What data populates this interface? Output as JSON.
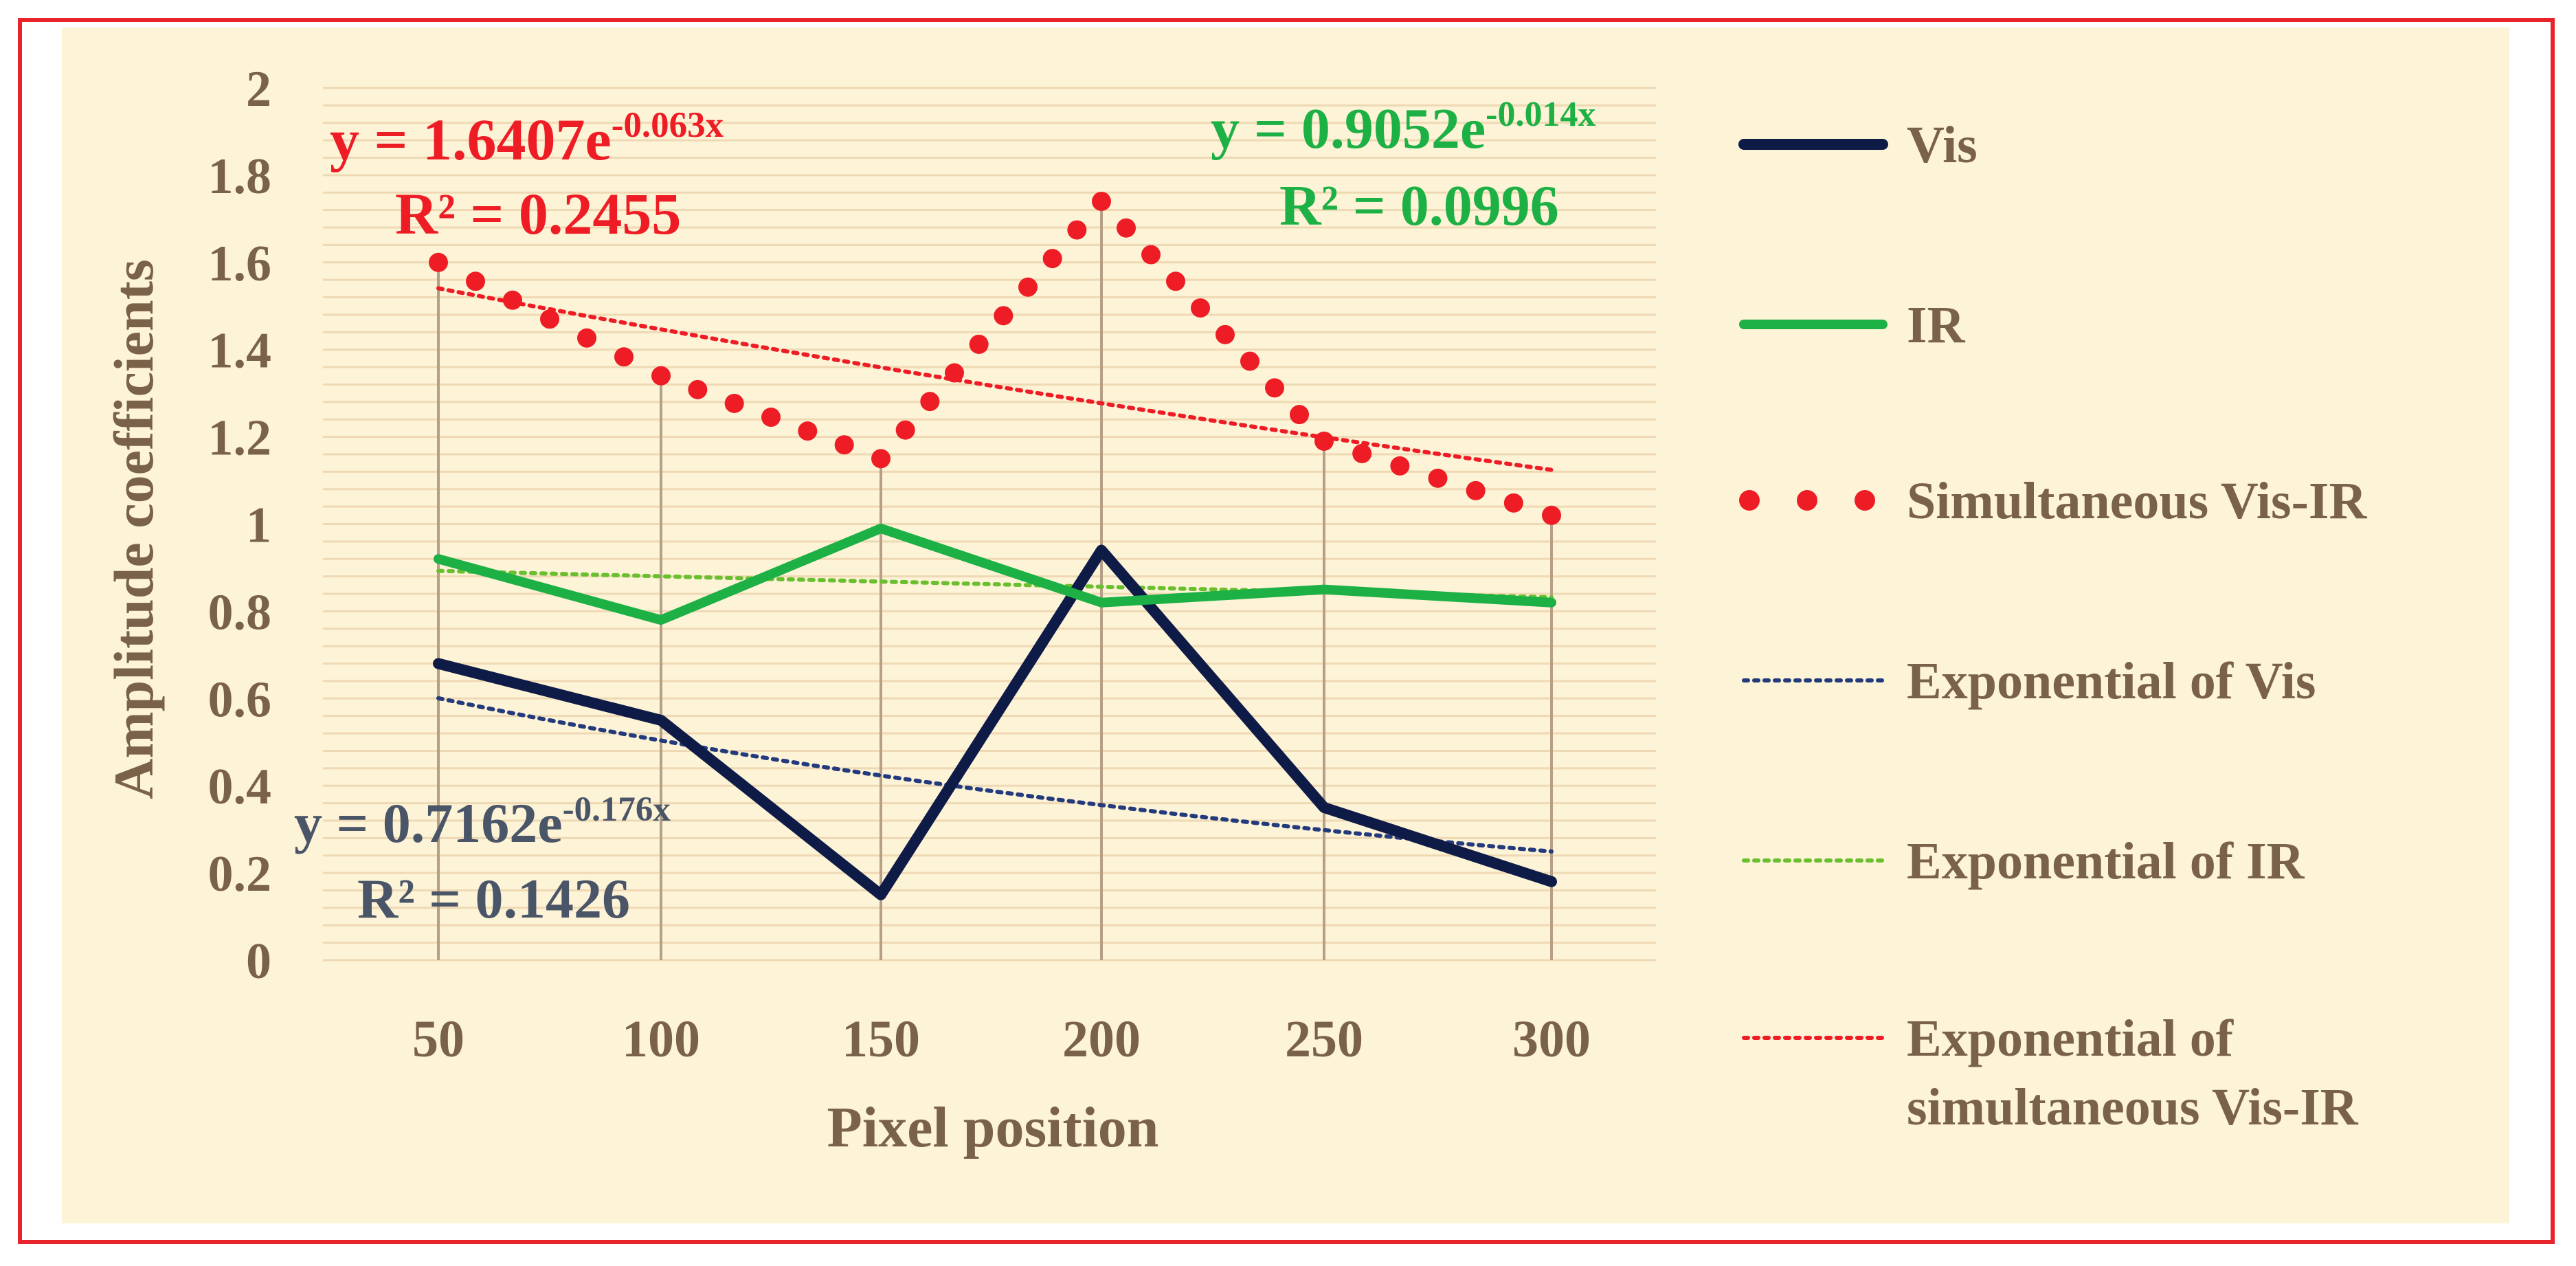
{
  "chart_data": {
    "type": "line",
    "xlabel": "Pixel position",
    "ylabel": "Amplitude coefficients",
    "x": [
      50,
      100,
      150,
      200,
      250,
      300
    ],
    "x_tick_labels": [
      "50",
      "100",
      "150",
      "200",
      "250",
      "300"
    ],
    "ylim": [
      0,
      2
    ],
    "y_ticks": [
      0,
      0.2,
      0.4,
      0.6,
      0.8,
      1,
      1.2,
      1.4,
      1.6,
      1.8,
      2
    ],
    "y_tick_labels": [
      "0",
      "0.2",
      "0.4",
      "0.6",
      "0.8",
      "1",
      "1.2",
      "1.4",
      "1.6",
      "1.8",
      "2"
    ],
    "grid": "horizontal",
    "legend_position": "right",
    "colors": {
      "frame": "#e8232b",
      "plot_background": "#fdf3d7",
      "gridline": "#efd9b4",
      "axis_text": "#7a6248",
      "vertical_guides": "#b59f86",
      "vis": "#0e1b47",
      "ir": "#1db045",
      "simultaneous": "#ee1c24",
      "exp_vis": "#233a7c",
      "exp_ir": "#6abf2e",
      "exp_simultaneous": "#ee1c24",
      "vis_equation": "#4a5568"
    },
    "series": [
      {
        "name": "Vis",
        "style": "solid",
        "color_key": "vis",
        "values": [
          0.68,
          0.55,
          0.15,
          0.94,
          0.35,
          0.18
        ]
      },
      {
        "name": "IR",
        "style": "solid",
        "color_key": "ir",
        "values": [
          0.92,
          0.78,
          0.99,
          0.82,
          0.85,
          0.82
        ]
      },
      {
        "name": "Simultaneous Vis-IR",
        "style": "large-dots",
        "color_key": "simultaneous",
        "values": [
          1.6,
          1.34,
          1.15,
          1.74,
          1.19,
          1.02
        ]
      }
    ],
    "trendlines": [
      {
        "name": "Exponential of Vis",
        "color_key": "exp_vis",
        "a": 0.7162,
        "b": -0.176,
        "equation": "y = 0.7162e",
        "exponent": "-0.176x",
        "r2": "R² = 0.1426",
        "label_color_key": "vis_equation"
      },
      {
        "name": "Exponential of IR",
        "color_key": "exp_ir",
        "a": 0.9052,
        "b": -0.014,
        "equation": "y = 0.9052e",
        "exponent": "-0.014x",
        "r2": "R² = 0.0996",
        "label_color_key": "ir"
      },
      {
        "name_lines": [
          "Exponential of",
          "simultaneous Vis-IR"
        ],
        "color_key": "exp_simultaneous",
        "a": 1.6407,
        "b": -0.063,
        "equation": "y = 1.6407e",
        "exponent": "-0.063x",
        "r2": "R² = 0.2455",
        "label_color_key": "simultaneous"
      }
    ]
  }
}
